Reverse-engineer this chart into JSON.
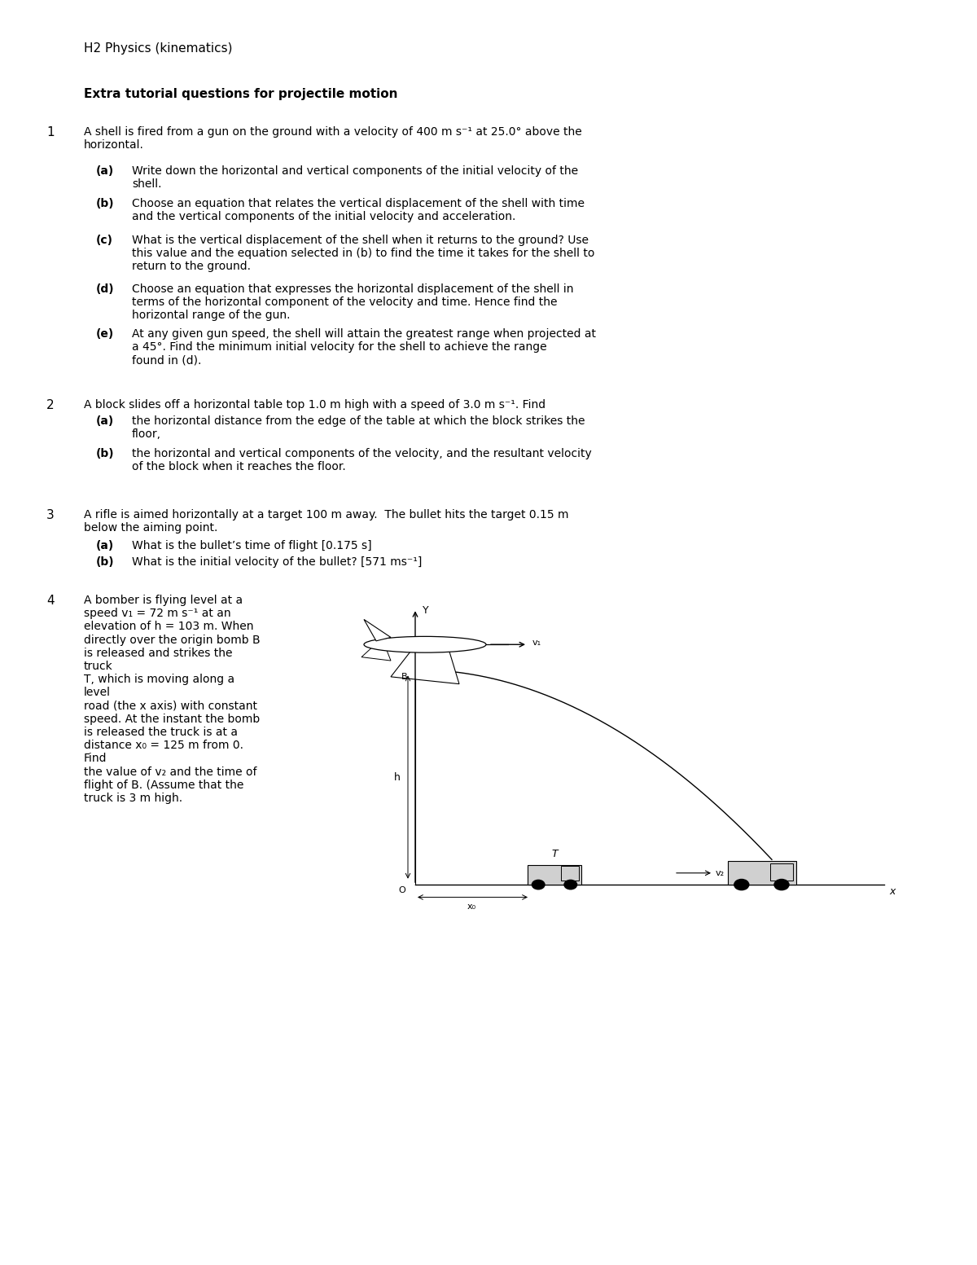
{
  "bg_color": "#ffffff",
  "header": "H2 Physics (kinematics)",
  "section_title": "Extra tutorial questions for projectile motion",
  "q1_num": "1",
  "q1_text": "A shell is fired from a gun on the ground with a velocity of 400 m s⁻¹ at 25.0° above the\nhorizontal.",
  "q1a_label": "(a)",
  "q1a_text": "Write down the horizontal and vertical components of the initial velocity of the\nshell.",
  "q1b_label": "(b)",
  "q1b_text": "Choose an equation that relates the vertical displacement of the shell with time\nand the vertical components of the initial velocity and acceleration.",
  "q1c_label": "(c)",
  "q1c_text": "What is the vertical displacement of the shell when it returns to the ground? Use\nthis value and the equation selected in (b) to find the time it takes for the shell to\nreturn to the ground.",
  "q1d_label": "(d)",
  "q1d_text": "Choose an equation that expresses the horizontal displacement of the shell in\nterms of the horizontal component of the velocity and time. Hence find the\nhorizontal range of the gun.",
  "q1e_label": "(e)",
  "q1e_text": "At any given gun speed, the shell will attain the greatest range when projected at\na 45°. Find the minimum initial velocity for the shell to achieve the range\nfound in (d).",
  "q2_num": "2",
  "q2_text": "A block slides off a horizontal table top 1.0 m high with a speed of 3.0 m s⁻¹. Find",
  "q2a_label": "(a)",
  "q2a_text": "the horizontal distance from the edge of the table at which the block strikes the\nfloor,",
  "q2b_label": "(b)",
  "q2b_text": "the horizontal and vertical components of the velocity, and the resultant velocity\nof the block when it reaches the floor.",
  "q3_num": "3",
  "q3_text": "A rifle is aimed horizontally at a target 100 m away.  The bullet hits the target 0.15 m\nbelow the aiming point.",
  "q3a_label": "(a)",
  "q3a_text": "What is the bullet’s time of flight [0.175 s]",
  "q3b_label": "(b)",
  "q3b_text": "What is the initial velocity of the bullet? [571 ms⁻¹]",
  "q4_num": "4",
  "q4_text": "A bomber is flying level at a\nspeed v₁ = 72 m s⁻¹ at an\nelevation of h = 103 m. When\ndirectly over the origin bomb B\nis released and strikes the\ntruck\nT, which is moving along a\nlevel\nroad (the x axis) with constant\nspeed. At the instant the bomb\nis released the truck is at a\ndistance x₀ = 125 m from 0.\nFind\nthe value of v₂ and the time of\nflight of B. (Assume that the\ntruck is 3 m high.",
  "font_size_header": 11,
  "font_size_title": 11,
  "font_size_body": 10,
  "font_size_num": 11
}
